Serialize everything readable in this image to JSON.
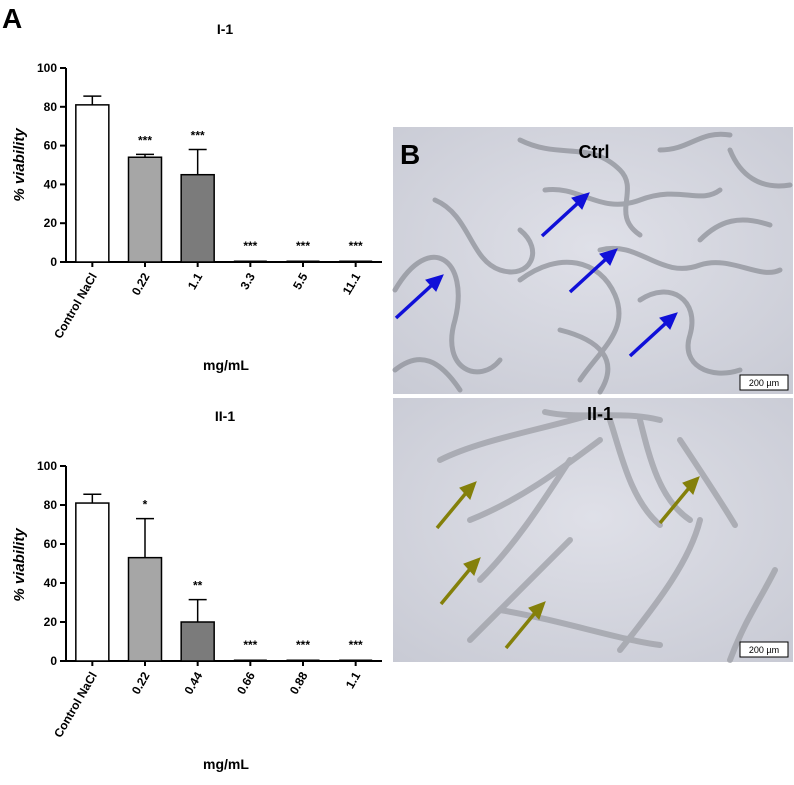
{
  "figure": {
    "panel_a_letter": "A",
    "panel_b_letter": "B"
  },
  "colors": {
    "control": "#ffffff",
    "dose1": "#a6a6a6",
    "dose2": "#7b7b7b",
    "ctrl_arrow": "#1010d8",
    "treated_arrow": "#84800a"
  },
  "chart_data": [
    {
      "type": "bar",
      "title": "I-1",
      "ylabel": "% viability",
      "xlabel": "mg/mL",
      "ylim": [
        0,
        100
      ],
      "yticks": [
        0,
        20,
        40,
        60,
        80,
        100
      ],
      "categories": [
        "Control NaCl",
        "0.22",
        "1.1",
        "3.3",
        "5.5",
        "11.1"
      ],
      "values": [
        81,
        54,
        45,
        0,
        0,
        0
      ],
      "errors": [
        4.5,
        1.5,
        13,
        0,
        0,
        0
      ],
      "significance": [
        "",
        "***",
        "***",
        "***",
        "***",
        "***"
      ]
    },
    {
      "type": "bar",
      "title": "II-1",
      "ylabel": "% viability",
      "xlabel": "mg/mL",
      "ylim": [
        0,
        100
      ],
      "yticks": [
        0,
        20,
        40,
        60,
        80,
        100
      ],
      "categories": [
        "Control NaCl",
        "0.22",
        "0.44",
        "0.66",
        "0.88",
        "1.1"
      ],
      "values": [
        81,
        53,
        20,
        0,
        0,
        0
      ],
      "errors": [
        4.5,
        20,
        11.5,
        0,
        0,
        0
      ],
      "significance": [
        "",
        "*",
        "**",
        "***",
        "***",
        "***"
      ]
    }
  ],
  "micrographs": [
    {
      "label": "Ctrl",
      "scale_bar": "200 µm",
      "arrow_icon": "blue-arrow-icon"
    },
    {
      "label": "II-1",
      "scale_bar": "200 µm",
      "arrow_icon": "olive-arrow-icon"
    }
  ]
}
